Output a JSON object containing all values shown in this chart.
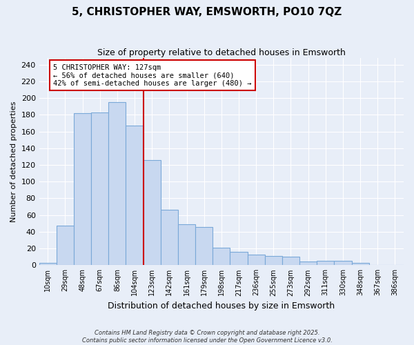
{
  "title": "5, CHRISTOPHER WAY, EMSWORTH, PO10 7QZ",
  "subtitle": "Size of property relative to detached houses in Emsworth",
  "xlabel": "Distribution of detached houses by size in Emsworth",
  "ylabel": "Number of detached properties",
  "bar_labels": [
    "10sqm",
    "29sqm",
    "48sqm",
    "67sqm",
    "86sqm",
    "104sqm",
    "123sqm",
    "142sqm",
    "161sqm",
    "179sqm",
    "198sqm",
    "217sqm",
    "236sqm",
    "255sqm",
    "273sqm",
    "292sqm",
    "311sqm",
    "330sqm",
    "348sqm",
    "367sqm",
    "386sqm"
  ],
  "bar_values": [
    3,
    47,
    182,
    183,
    195,
    167,
    126,
    66,
    49,
    46,
    21,
    16,
    13,
    11,
    10,
    4,
    5,
    5,
    3,
    0,
    0
  ],
  "bar_color": "#c8d8f0",
  "bar_edge_color": "#7aa8d8",
  "vline_x_index": 6,
  "vline_color": "#cc0000",
  "ylim": [
    0,
    248
  ],
  "yticks": [
    0,
    20,
    40,
    60,
    80,
    100,
    120,
    140,
    160,
    180,
    200,
    220,
    240
  ],
  "annotation_title": "5 CHRISTOPHER WAY: 127sqm",
  "annotation_line1": "← 56% of detached houses are smaller (640)",
  "annotation_line2": "42% of semi-detached houses are larger (480) →",
  "annotation_box_color": "#ffffff",
  "annotation_box_edge_color": "#cc0000",
  "footer_line1": "Contains HM Land Registry data © Crown copyright and database right 2025.",
  "footer_line2": "Contains public sector information licensed under the Open Government Licence v3.0.",
  "background_color": "#e8eef8",
  "grid_color": "#ffffff",
  "title_fontsize": 11,
  "subtitle_fontsize": 9
}
